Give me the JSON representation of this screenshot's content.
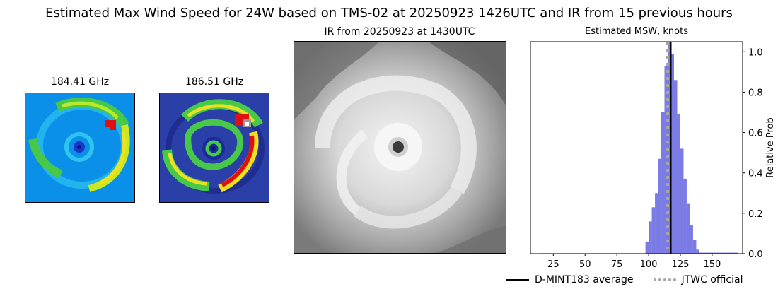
{
  "figure": {
    "title": "Estimated Max Wind Speed for 24W based on TMS-02 at 20250923 1426UTC and IR from 15 previous hours"
  },
  "panels": {
    "mw1": {
      "label": "184.41 GHz"
    },
    "mw2": {
      "label": "186.51 GHz"
    },
    "ir": {
      "label": "IR from 20250923 at 1430UTC"
    }
  },
  "chart_data": {
    "type": "bar",
    "title": "Estimated MSW, knots",
    "xlabel": "",
    "ylabel": "Relative Prob",
    "xlim": [
      7,
      174
    ],
    "ylim": [
      0,
      1.05
    ],
    "x_ticks": [
      25,
      50,
      75,
      100,
      125,
      150
    ],
    "y_ticks": [
      0.0,
      0.2,
      0.4,
      0.6,
      0.8,
      1.0
    ],
    "y_tick_labels": [
      "0.0",
      "0.2",
      "0.4",
      "0.6",
      "0.8",
      "1.0"
    ],
    "y_axis_side": "right",
    "bin_width": 2.5,
    "bins": [
      15,
      17.5,
      20,
      22.5,
      25,
      27.5,
      30,
      32.5,
      35,
      37.5,
      40,
      42.5,
      45,
      47.5,
      50,
      52.5,
      55,
      57.5,
      60,
      62.5,
      65,
      67.5,
      70,
      72.5,
      75,
      77.5,
      80,
      82.5,
      85,
      87.5,
      90,
      92.5,
      95,
      97.5,
      100,
      102.5,
      105,
      107.5,
      110,
      112.5,
      115,
      117.5,
      120,
      122.5,
      125,
      127.5,
      130,
      132.5,
      135,
      137.5,
      140,
      142.5,
      145,
      147.5,
      150,
      152.5,
      155,
      157.5,
      160,
      162.5,
      165,
      167.5
    ],
    "values": [
      0.002,
      0.002,
      0.002,
      0.002,
      0.002,
      0.002,
      0.002,
      0.002,
      0.002,
      0.002,
      0.002,
      0.002,
      0.002,
      0.002,
      0.002,
      0.002,
      0.002,
      0.002,
      0.002,
      0.002,
      0.002,
      0.002,
      0.002,
      0.002,
      0.002,
      0.002,
      0.002,
      0.002,
      0.002,
      0.002,
      0.002,
      0.002,
      0.002,
      0.06,
      0.16,
      0.23,
      0.3,
      0.47,
      0.7,
      0.93,
      1.05,
      0.99,
      0.86,
      0.69,
      0.52,
      0.37,
      0.25,
      0.14,
      0.07,
      0.02,
      0.005,
      0.005,
      0.005,
      0.005,
      0.005,
      0.005,
      0.005,
      0.005,
      0.005,
      0.005,
      0.005,
      0.005
    ],
    "bar_color": "#7b7be6",
    "series": [
      {
        "name": "D-MINT183 average",
        "x": 117.5,
        "color": "#000000",
        "style": "solid"
      },
      {
        "name": "JTWC official",
        "x": 115,
        "color": "#a6a6a6",
        "style": "dotted"
      }
    ],
    "legend_position": "bottom-right"
  }
}
